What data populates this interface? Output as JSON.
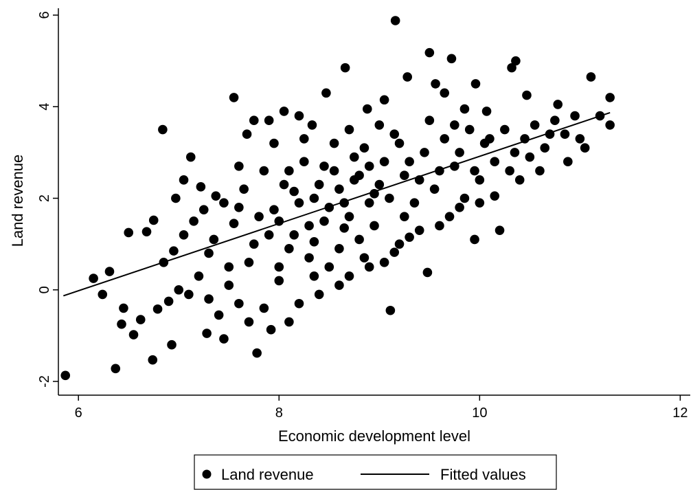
{
  "chart_data": {
    "type": "scatter",
    "title": "",
    "xlabel": "Economic development level",
    "ylabel": "Land revenue",
    "xlim": [
      5.8,
      12.1
    ],
    "ylim": [
      -2.3,
      6.15
    ],
    "x_ticks": [
      6,
      8,
      10,
      12
    ],
    "y_ticks": [
      -2,
      0,
      2,
      4,
      6
    ],
    "x_tick_labels": [
      "6",
      "8",
      "10",
      "12"
    ],
    "y_tick_labels": [
      "-2",
      "0",
      "2",
      "4",
      "6"
    ],
    "grid": false,
    "legend_position": "bottom",
    "marker_color": "#000000",
    "series": [
      {
        "name": "Land revenue",
        "kind": "scatter",
        "points": [
          [
            5.87,
            -1.87
          ],
          [
            6.37,
            -1.72
          ],
          [
            6.74,
            -1.53
          ],
          [
            6.93,
            -1.2
          ],
          [
            7.28,
            -0.95
          ],
          [
            7.45,
            -1.07
          ],
          [
            7.92,
            -0.87
          ],
          [
            7.78,
            -1.38
          ],
          [
            9.11,
            -0.45
          ],
          [
            6.43,
            -0.75
          ],
          [
            6.55,
            -0.98
          ],
          [
            6.62,
            -0.65
          ],
          [
            6.79,
            -0.42
          ],
          [
            6.45,
            -0.4
          ],
          [
            6.24,
            -0.1
          ],
          [
            6.15,
            0.25
          ],
          [
            6.31,
            0.4
          ],
          [
            6.5,
            1.25
          ],
          [
            6.68,
            1.27
          ],
          [
            6.75,
            1.52
          ],
          [
            6.84,
            3.5
          ],
          [
            6.97,
            2.0
          ],
          [
            7.05,
            2.4
          ],
          [
            7.12,
            2.9
          ],
          [
            7.22,
            2.25
          ],
          [
            7.37,
            2.05
          ],
          [
            7.55,
            4.2
          ],
          [
            7.6,
            2.7
          ],
          [
            7.68,
            3.4
          ],
          [
            7.75,
            3.7
          ],
          [
            7.9,
            3.7
          ],
          [
            8.05,
            3.9
          ],
          [
            8.2,
            3.8
          ],
          [
            8.33,
            3.6
          ],
          [
            8.47,
            4.3
          ],
          [
            8.66,
            4.85
          ],
          [
            8.88,
            3.95
          ],
          [
            9.05,
            4.15
          ],
          [
            9.16,
            5.88
          ],
          [
            9.28,
            4.65
          ],
          [
            9.5,
            5.18
          ],
          [
            9.72,
            5.05
          ],
          [
            9.56,
            4.5
          ],
          [
            9.65,
            4.3
          ],
          [
            9.85,
            3.95
          ],
          [
            9.96,
            4.5
          ],
          [
            10.07,
            3.9
          ],
          [
            10.32,
            4.85
          ],
          [
            10.36,
            5.0
          ],
          [
            10.47,
            4.25
          ],
          [
            10.78,
            4.05
          ],
          [
            11.11,
            4.65
          ],
          [
            11.3,
            4.2
          ],
          [
            11.3,
            3.6
          ],
          [
            11.2,
            3.8
          ],
          [
            11.0,
            3.3
          ],
          [
            10.88,
            2.8
          ],
          [
            10.6,
            2.6
          ],
          [
            10.4,
            2.4
          ],
          [
            10.15,
            2.05
          ],
          [
            10.2,
            1.3
          ],
          [
            9.95,
            1.1
          ],
          [
            9.48,
            0.38
          ],
          [
            9.15,
            0.82
          ],
          [
            8.9,
            0.5
          ],
          [
            8.7,
            0.3
          ],
          [
            8.4,
            -0.1
          ],
          [
            8.2,
            -0.3
          ],
          [
            8.1,
            -0.7
          ],
          [
            8.0,
            0.2
          ],
          [
            7.85,
            -0.4
          ],
          [
            7.7,
            -0.7
          ],
          [
            7.6,
            -0.3
          ],
          [
            7.5,
            0.1
          ],
          [
            7.4,
            -0.55
          ],
          [
            7.3,
            -0.2
          ],
          [
            7.2,
            0.3
          ],
          [
            7.1,
            -0.1
          ],
          [
            7.0,
            0.0
          ],
          [
            6.9,
            -0.25
          ],
          [
            6.85,
            0.6
          ],
          [
            6.95,
            0.85
          ],
          [
            7.05,
            1.2
          ],
          [
            7.15,
            1.5
          ],
          [
            7.25,
            1.75
          ],
          [
            7.35,
            1.1
          ],
          [
            7.45,
            1.9
          ],
          [
            7.55,
            1.45
          ],
          [
            7.65,
            2.2
          ],
          [
            7.75,
            1.0
          ],
          [
            7.85,
            2.6
          ],
          [
            7.95,
            1.75
          ],
          [
            8.05,
            2.3
          ],
          [
            8.15,
            1.2
          ],
          [
            8.25,
            2.8
          ],
          [
            8.35,
            2.0
          ],
          [
            8.45,
            1.5
          ],
          [
            8.55,
            2.6
          ],
          [
            8.65,
            1.9
          ],
          [
            8.75,
            2.4
          ],
          [
            8.85,
            3.1
          ],
          [
            8.95,
            2.1
          ],
          [
            9.05,
            2.8
          ],
          [
            9.15,
            3.4
          ],
          [
            9.25,
            2.5
          ],
          [
            9.35,
            1.9
          ],
          [
            9.45,
            3.0
          ],
          [
            9.55,
            2.2
          ],
          [
            9.65,
            3.3
          ],
          [
            9.75,
            2.7
          ],
          [
            9.85,
            2.0
          ],
          [
            9.95,
            2.6
          ],
          [
            10.05,
            3.2
          ],
          [
            10.15,
            2.8
          ],
          [
            10.25,
            3.5
          ],
          [
            10.35,
            3.0
          ],
          [
            10.45,
            3.3
          ],
          [
            10.55,
            3.6
          ],
          [
            10.65,
            3.1
          ],
          [
            10.75,
            3.7
          ],
          [
            10.85,
            3.4
          ],
          [
            10.95,
            3.8
          ],
          [
            11.05,
            3.1
          ],
          [
            10.5,
            2.9
          ],
          [
            10.0,
            2.4
          ],
          [
            9.7,
            1.6
          ],
          [
            9.4,
            1.3
          ],
          [
            9.2,
            1.0
          ],
          [
            8.8,
            1.1
          ],
          [
            8.6,
            0.9
          ],
          [
            8.3,
            0.7
          ],
          [
            8.1,
            0.9
          ],
          [
            7.9,
            1.2
          ],
          [
            7.7,
            0.6
          ],
          [
            7.5,
            0.5
          ],
          [
            7.3,
            0.8
          ],
          [
            8.5,
            1.8
          ],
          [
            8.6,
            2.2
          ],
          [
            8.7,
            1.6
          ],
          [
            8.8,
            2.5
          ],
          [
            8.9,
            1.9
          ],
          [
            9.0,
            2.3
          ],
          [
            8.4,
            2.3
          ],
          [
            8.3,
            1.4
          ],
          [
            8.2,
            1.9
          ],
          [
            8.0,
            1.5
          ],
          [
            8.75,
            2.9
          ],
          [
            8.55,
            3.2
          ],
          [
            8.45,
            2.7
          ],
          [
            9.1,
            2.0
          ],
          [
            9.3,
            2.8
          ],
          [
            9.6,
            2.6
          ],
          [
            9.8,
            3.0
          ],
          [
            7.8,
            1.6
          ],
          [
            8.1,
            2.6
          ],
          [
            8.35,
            1.05
          ],
          [
            8.65,
            1.35
          ],
          [
            8.95,
            1.4
          ],
          [
            9.25,
            1.6
          ],
          [
            7.6,
            1.8
          ],
          [
            9.4,
            2.4
          ],
          [
            8.9,
            2.7
          ],
          [
            8.5,
            0.5
          ],
          [
            8.0,
            0.5
          ],
          [
            9.9,
            3.5
          ],
          [
            10.1,
            3.3
          ],
          [
            10.7,
            3.4
          ],
          [
            10.3,
            2.6
          ],
          [
            7.95,
            3.2
          ],
          [
            8.25,
            3.3
          ],
          [
            8.15,
            2.15
          ],
          [
            8.7,
            3.5
          ],
          [
            9.0,
            3.6
          ],
          [
            9.2,
            3.2
          ],
          [
            9.5,
            3.7
          ],
          [
            9.75,
            3.6
          ],
          [
            8.6,
            0.1
          ],
          [
            8.35,
            0.3
          ],
          [
            8.85,
            0.7
          ],
          [
            9.05,
            0.6
          ],
          [
            9.3,
            1.15
          ],
          [
            9.6,
            1.4
          ],
          [
            9.8,
            1.8
          ],
          [
            10.0,
            1.9
          ]
        ]
      },
      {
        "name": "Fitted values",
        "kind": "line",
        "points": [
          [
            5.85,
            -0.13
          ],
          [
            11.3,
            3.87
          ]
        ]
      }
    ]
  }
}
